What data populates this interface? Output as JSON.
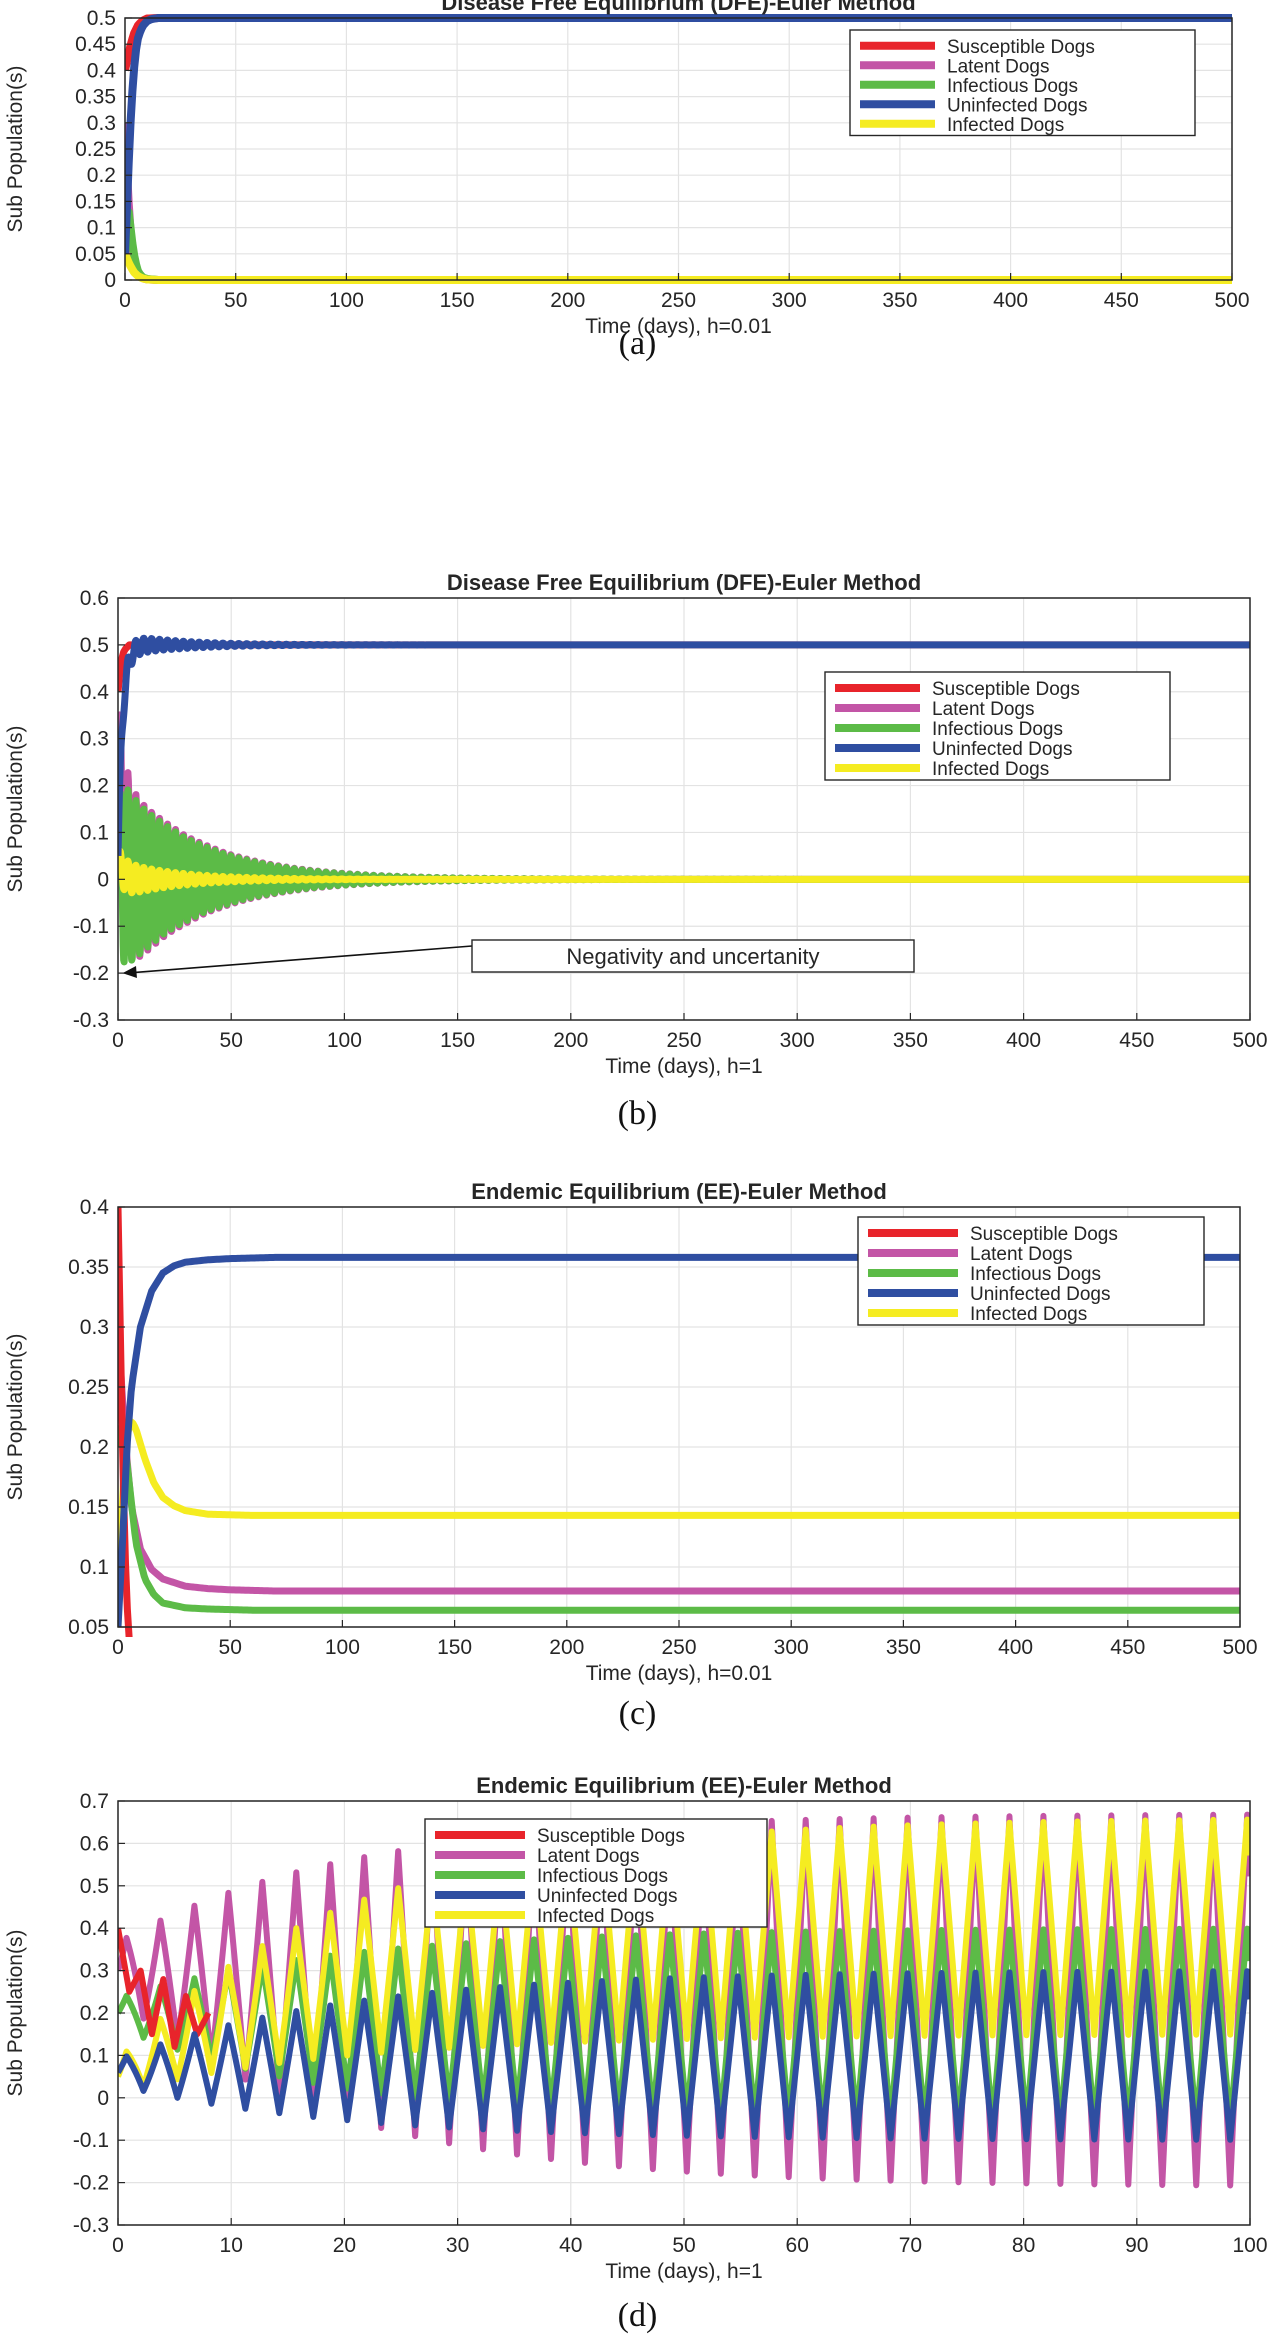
{
  "chart_data": [
    {
      "type": "line",
      "panel_label": "(a)",
      "title": "Disease Free Equilibrium (DFE)-Euler Method",
      "xlabel": "Time (days), h=0.01",
      "ylabel": "Sub Population(s)",
      "xlim": [
        0,
        500
      ],
      "ylim": [
        0,
        0.5
      ],
      "xticks": [
        0,
        50,
        100,
        150,
        200,
        250,
        300,
        350,
        400,
        450,
        500
      ],
      "yticks": [
        0,
        0.05,
        0.1,
        0.15,
        0.2,
        0.25,
        0.3,
        0.35,
        0.4,
        0.45,
        0.5
      ],
      "grid": true,
      "legend_position": "top-right",
      "series": [
        {
          "name": "Susceptible Dogs",
          "color": "#e8242b",
          "x": [
            0,
            2,
            4,
            6,
            8,
            10,
            15,
            500
          ],
          "y": [
            0.4,
            0.44,
            0.47,
            0.487,
            0.495,
            0.499,
            0.5,
            0.5
          ]
        },
        {
          "name": "Latent Dogs",
          "color": "#c355a6",
          "x": [
            0,
            1,
            2,
            3,
            4,
            5,
            6,
            8,
            10,
            15,
            500
          ],
          "y": [
            0.3,
            0.2,
            0.12,
            0.07,
            0.04,
            0.02,
            0.01,
            0.003,
            0.001,
            0,
            0
          ]
        },
        {
          "name": "Infectious Dogs",
          "color": "#5cbb47",
          "x": [
            0,
            1,
            2,
            3,
            4,
            5,
            6,
            8,
            10,
            15,
            500
          ],
          "y": [
            0.05,
            0.15,
            0.12,
            0.08,
            0.05,
            0.03,
            0.015,
            0.005,
            0.002,
            0,
            0
          ]
        },
        {
          "name": "Uninfected Dogs",
          "color": "#2f4ea1",
          "x": [
            0,
            1,
            2,
            3,
            4,
            5,
            6,
            8,
            10,
            12,
            15,
            20,
            500
          ],
          "y": [
            0.05,
            0.15,
            0.26,
            0.34,
            0.4,
            0.44,
            0.465,
            0.485,
            0.494,
            0.498,
            0.5,
            0.5,
            0.5
          ]
        },
        {
          "name": "Infected Dogs",
          "color": "#f5ec21",
          "x": [
            0,
            2,
            4,
            6,
            8,
            10,
            15,
            500
          ],
          "y": [
            0.05,
            0.03,
            0.015,
            0.007,
            0.003,
            0.001,
            0,
            0
          ]
        }
      ],
      "annotations": []
    },
    {
      "type": "line",
      "panel_label": "(b)",
      "title": "Disease Free Equilibrium (DFE)-Euler Method",
      "xlabel": "Time (days), h=1",
      "ylabel": "Sub Population(s)",
      "xlim": [
        0,
        500
      ],
      "ylim": [
        -0.3,
        0.6
      ],
      "xticks": [
        0,
        50,
        100,
        150,
        200,
        250,
        300,
        350,
        400,
        450,
        500
      ],
      "yticks": [
        -0.3,
        -0.2,
        -0.1,
        0,
        0.1,
        0.2,
        0.3,
        0.4,
        0.5,
        0.6
      ],
      "grid": true,
      "legend_position": "right",
      "series": [
        {
          "name": "Susceptible Dogs",
          "color": "#e8242b",
          "x": [
            0,
            1,
            2,
            3,
            5,
            500
          ],
          "y": [
            0.4,
            0.45,
            0.48,
            0.49,
            0.5,
            0.5
          ]
        },
        {
          "name": "Latent Dogs",
          "color": "#c355a6",
          "oscillation": {
            "start": 0.3,
            "center": 0,
            "initial_amplitude": 0.22,
            "decay_time_days": 35,
            "period_days": 3.5
          },
          "x": [
            0,
            500
          ],
          "y": [
            0.3,
            0
          ]
        },
        {
          "name": "Infectious Dogs",
          "color": "#5cbb47",
          "oscillation": {
            "start": 0.05,
            "center": 0,
            "initial_amplitude": 0.21,
            "decay_time_days": 35,
            "period_days": 3.5
          },
          "x": [
            0,
            500
          ],
          "y": [
            0.05,
            0
          ]
        },
        {
          "name": "Uninfected Dogs",
          "color": "#2f4ea1",
          "oscillation": {
            "start": 0.05,
            "center": 0.5,
            "initial_amplitude": 0.025,
            "decay_time_days": 25,
            "period_days": 3.5
          },
          "x": [
            0,
            500
          ],
          "y": [
            0.05,
            0.5
          ]
        },
        {
          "name": "Infected Dogs",
          "color": "#f5ec21",
          "oscillation": {
            "start": 0.05,
            "center": 0,
            "initial_amplitude": 0.04,
            "decay_time_days": 25,
            "period_days": 3.5
          },
          "x": [
            0,
            500
          ],
          "y": [
            0.05,
            0
          ]
        }
      ],
      "annotations": [
        {
          "text": "Negativity and uncertanity",
          "arrow_to": [
            2,
            -0.2
          ]
        }
      ]
    },
    {
      "type": "line",
      "panel_label": "(c)",
      "title": "Endemic Equilibrium (EE)-Euler Method",
      "xlabel": "Time (days), h=0.01",
      "ylabel": "Sub Population(s)",
      "xlim": [
        0,
        500
      ],
      "ylim": [
        0.05,
        0.4
      ],
      "xticks": [
        0,
        50,
        100,
        150,
        200,
        250,
        300,
        350,
        400,
        450,
        500
      ],
      "yticks": [
        0.05,
        0.1,
        0.15,
        0.2,
        0.25,
        0.3,
        0.35,
        0.4
      ],
      "grid": true,
      "legend_position": "top-right",
      "series": [
        {
          "name": "Susceptible Dogs",
          "color": "#e8242b",
          "x": [
            0,
            1,
            2,
            3,
            4,
            5
          ],
          "y": [
            0.4,
            0.3,
            0.2,
            0.12,
            0.07,
            0.04
          ]
        },
        {
          "name": "Latent Dogs",
          "color": "#c355a6",
          "x": [
            0,
            3,
            6,
            10,
            15,
            20,
            30,
            40,
            50,
            70,
            500
          ],
          "y": [
            0.3,
            0.21,
            0.15,
            0.115,
            0.098,
            0.09,
            0.084,
            0.082,
            0.081,
            0.08,
            0.08
          ]
        },
        {
          "name": "Infectious Dogs",
          "color": "#5cbb47",
          "x": [
            0,
            2,
            5,
            8,
            12,
            16,
            20,
            30,
            40,
            60,
            500
          ],
          "y": [
            0.2,
            0.22,
            0.17,
            0.12,
            0.09,
            0.077,
            0.07,
            0.066,
            0.065,
            0.064,
            0.064
          ]
        },
        {
          "name": "Uninfected Dogs",
          "color": "#2f4ea1",
          "x": [
            0,
            2,
            4,
            6,
            10,
            15,
            20,
            25,
            30,
            40,
            50,
            70,
            500
          ],
          "y": [
            0.05,
            0.12,
            0.2,
            0.25,
            0.3,
            0.33,
            0.345,
            0.351,
            0.354,
            0.356,
            0.357,
            0.358,
            0.358
          ]
        },
        {
          "name": "Infected Dogs",
          "color": "#f5ec21",
          "x": [
            0,
            2,
            4,
            6,
            8,
            12,
            16,
            20,
            25,
            30,
            40,
            60,
            500
          ],
          "y": [
            0.05,
            0.16,
            0.21,
            0.222,
            0.215,
            0.19,
            0.17,
            0.158,
            0.151,
            0.147,
            0.144,
            0.143,
            0.143
          ]
        }
      ],
      "annotations": []
    },
    {
      "type": "line",
      "panel_label": "(d)",
      "title": "Endemic Equilibrium (EE)-Euler Method",
      "xlabel": "Time (days), h=1",
      "ylabel": "Sub Population(s)",
      "xlim": [
        0,
        100
      ],
      "ylim": [
        -0.3,
        0.7
      ],
      "xticks": [
        0,
        10,
        20,
        30,
        40,
        50,
        60,
        70,
        80,
        90,
        100
      ],
      "yticks": [
        -0.3,
        -0.2,
        -0.1,
        0,
        0.1,
        0.2,
        0.3,
        0.4,
        0.5,
        0.6,
        0.7
      ],
      "grid": true,
      "legend_position": "top-left",
      "series": [
        {
          "name": "Susceptible Dogs",
          "color": "#e8242b",
          "x": [
            0,
            1,
            2,
            3,
            4,
            5,
            6,
            7,
            8
          ],
          "y": [
            0.4,
            0.25,
            0.3,
            0.15,
            0.28,
            0.12,
            0.24,
            0.15,
            0.2
          ]
        },
        {
          "name": "Latent Dogs",
          "color": "#c355a6",
          "oscillation": {
            "type": "growing",
            "period_days": 3,
            "final_max": 0.67,
            "final_min": -0.21,
            "growth_time_days": 20
          },
          "x": [
            0,
            100
          ],
          "y": [
            0.3,
            0.67
          ]
        },
        {
          "name": "Infectious Dogs",
          "color": "#5cbb47",
          "oscillation": {
            "type": "growing",
            "period_days": 3,
            "final_max": 0.4,
            "final_min": -0.06,
            "growth_time_days": 20
          },
          "x": [
            0,
            100
          ],
          "y": [
            0.2,
            0.4
          ]
        },
        {
          "name": "Uninfected Dogs",
          "color": "#2f4ea1",
          "oscillation": {
            "type": "growing",
            "period_days": 3,
            "final_max": 0.3,
            "final_min": -0.1,
            "growth_time_days": 20
          },
          "x": [
            0,
            100
          ],
          "y": [
            0.06,
            0.3
          ]
        },
        {
          "name": "Infected Dogs",
          "color": "#f5ec21",
          "oscillation": {
            "type": "growing",
            "period_days": 3,
            "final_max": 0.66,
            "final_min": 0.15,
            "growth_time_days": 20
          },
          "x": [
            0,
            100
          ],
          "y": [
            0.05,
            0.66
          ]
        }
      ],
      "annotations": []
    }
  ]
}
